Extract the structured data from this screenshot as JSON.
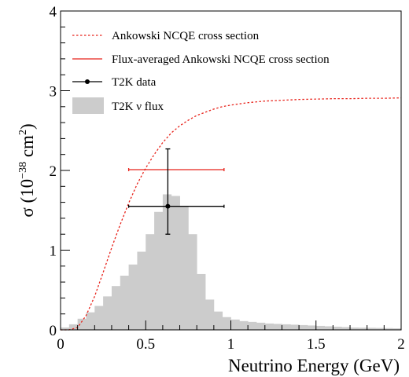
{
  "chart_data": {
    "type": "line",
    "title": "",
    "xlabel": "Neutrino Energy (GeV)",
    "ylabel": {
      "main": "σ (10",
      "exponent": "−38",
      "unit": " cm",
      "unit_exponent": "2",
      "close": ")"
    },
    "xlim": [
      0,
      2
    ],
    "ylim": [
      0,
      4
    ],
    "x_ticks": [
      {
        "value": 0,
        "label": "0"
      },
      {
        "value": 0.5,
        "label": "0.5"
      },
      {
        "value": 1,
        "label": "1"
      },
      {
        "value": 1.5,
        "label": "1.5"
      },
      {
        "value": 2,
        "label": "2"
      }
    ],
    "y_ticks": [
      {
        "value": 0,
        "label": "0"
      },
      {
        "value": 1,
        "label": "1"
      },
      {
        "value": 2,
        "label": "2"
      },
      {
        "value": 3,
        "label": "3"
      },
      {
        "value": 4,
        "label": "4"
      }
    ],
    "grid": false,
    "legend_position": "top-left",
    "colors": {
      "cross_section": "#e8231b",
      "flux_averaged": "#e8231b",
      "data": "#000000",
      "flux": "#cccccc"
    },
    "series": [
      {
        "name": "Ankowski NCQE cross section",
        "style": "dotted-line",
        "x": [
          0,
          0.05,
          0.1,
          0.15,
          0.2,
          0.25,
          0.3,
          0.35,
          0.4,
          0.45,
          0.5,
          0.55,
          0.6,
          0.65,
          0.7,
          0.75,
          0.8,
          0.85,
          0.9,
          0.95,
          1.0,
          1.1,
          1.2,
          1.3,
          1.4,
          1.5,
          1.6,
          1.7,
          1.8,
          1.9,
          2.0
        ],
        "y": [
          0,
          0,
          0.03,
          0.18,
          0.42,
          0.72,
          1.03,
          1.32,
          1.59,
          1.83,
          2.03,
          2.2,
          2.35,
          2.47,
          2.56,
          2.63,
          2.69,
          2.73,
          2.77,
          2.8,
          2.82,
          2.85,
          2.87,
          2.88,
          2.89,
          2.895,
          2.9,
          2.9,
          2.905,
          2.905,
          2.91
        ]
      },
      {
        "name": "Flux-averaged Ankowski NCQE cross section",
        "style": "horizontal-segment",
        "x": [
          0.4,
          0.96
        ],
        "y": [
          2.01,
          2.01
        ]
      },
      {
        "name": "T2K data",
        "style": "point-with-errors",
        "x": [
          0.63
        ],
        "y": [
          1.55
        ],
        "x_range": [
          0.4,
          0.96
        ],
        "y_range": [
          1.2,
          2.27
        ]
      },
      {
        "name": "T2K ν flux",
        "style": "histogram",
        "bin_width": 0.05,
        "bin_start": [
          0.0,
          0.05,
          0.1,
          0.15,
          0.2,
          0.25,
          0.3,
          0.35,
          0.4,
          0.45,
          0.5,
          0.55,
          0.6,
          0.65,
          0.7,
          0.75,
          0.8,
          0.85,
          0.9,
          0.95,
          1.0,
          1.05,
          1.1,
          1.15,
          1.2,
          1.25,
          1.3,
          1.35,
          1.4,
          1.45,
          1.5,
          1.55,
          1.6,
          1.65,
          1.7,
          1.75,
          1.8,
          1.85,
          1.9,
          1.95
        ],
        "values": [
          0.03,
          0.07,
          0.14,
          0.22,
          0.3,
          0.42,
          0.55,
          0.68,
          0.82,
          0.98,
          1.2,
          1.48,
          1.7,
          1.68,
          1.55,
          1.2,
          0.7,
          0.38,
          0.23,
          0.16,
          0.13,
          0.11,
          0.1,
          0.09,
          0.08,
          0.075,
          0.07,
          0.065,
          0.06,
          0.055,
          0.05,
          0.045,
          0.04,
          0.035,
          0.03,
          0.028,
          0.026,
          0.024,
          0.022,
          0.02
        ]
      }
    ]
  }
}
